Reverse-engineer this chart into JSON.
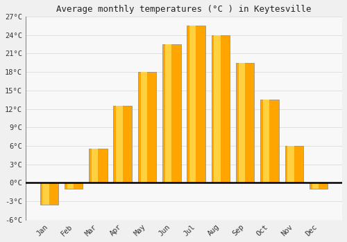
{
  "title": "Average monthly temperatures (°C ) in Keytesville",
  "months": [
    "Jan",
    "Feb",
    "Mar",
    "Apr",
    "May",
    "Jun",
    "Jul",
    "Aug",
    "Sep",
    "Oct",
    "Nov",
    "Dec"
  ],
  "values": [
    -3.5,
    -1.0,
    5.5,
    12.5,
    18.0,
    22.5,
    25.5,
    24.0,
    19.5,
    13.5,
    6.0,
    -1.0
  ],
  "bar_color_main": "#FFA500",
  "bar_color_light": "#FFD040",
  "bar_edge_color": "#888888",
  "ylim": [
    -6,
    27
  ],
  "yticks": [
    -6,
    -3,
    0,
    3,
    6,
    9,
    12,
    15,
    18,
    21,
    24,
    27
  ],
  "ytick_labels": [
    "-6°C",
    "-3°C",
    "0°C",
    "3°C",
    "6°C",
    "9°C",
    "12°C",
    "15°C",
    "18°C",
    "21°C",
    "24°C",
    "27°C"
  ],
  "background_color": "#f0f0f0",
  "plot_bg_color": "#f8f8f8",
  "grid_color": "#e0e0e0",
  "zero_line_color": "#000000",
  "title_fontsize": 9,
  "tick_fontsize": 7.5,
  "bar_width": 0.75,
  "figsize": [
    5.0,
    3.5
  ],
  "dpi": 100
}
